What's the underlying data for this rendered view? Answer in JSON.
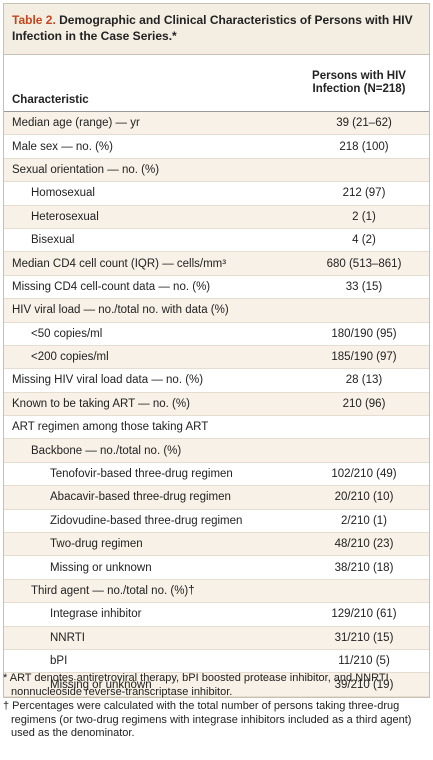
{
  "title": {
    "label": "Table 2.",
    "text": "Demographic and Clinical Characteristics of Persons with HIV Infection in the Case Series.*"
  },
  "table": {
    "header": {
      "characteristic": "Characteristic",
      "value": "Persons with HIV Infection (N=218)"
    },
    "rows": [
      {
        "label": "Median age (range) — yr",
        "value": "39 (21–62)"
      },
      {
        "label": "Male sex — no. (%)",
        "value": "218 (100)"
      },
      {
        "label": "Sexual orientation — no. (%)",
        "rows": [
          {
            "label": "Homosexual",
            "value": "212 (97)"
          },
          {
            "label": "Heterosexual",
            "value": "2 (1)"
          },
          {
            "label": "Bisexual",
            "value": "4 (2)"
          }
        ]
      },
      {
        "label": "Median CD4 cell count (IQR) — cells/mm³",
        "value": "680 (513–861)"
      },
      {
        "label": "Missing CD4 cell-count data — no. (%)",
        "value": "33 (15)"
      },
      {
        "label": "HIV viral load — no./total no. with data (%)",
        "rows": [
          {
            "label": "<50 copies/ml",
            "value": "180/190 (95)"
          },
          {
            "label": "<200 copies/ml",
            "value": "185/190 (97)"
          }
        ]
      },
      {
        "label": "Missing HIV viral load data — no. (%)",
        "value": "28 (13)"
      },
      {
        "label": "Known to be taking ART — no. (%)",
        "value": "210 (96)"
      },
      {
        "label": "ART regimen among those taking ART",
        "rows": [
          {
            "label": "Backbone — no./total no. (%)",
            "rows": [
              {
                "label": "Tenofovir-based three-drug regimen",
                "value": "102/210 (49)"
              },
              {
                "label": "Abacavir-based three-drug regimen",
                "value": "20/210 (10)"
              },
              {
                "label": "Zidovudine-based three-drug regimen",
                "value": "2/210 (1)"
              },
              {
                "label": "Two-drug regimen",
                "value": "48/210 (23)"
              },
              {
                "label": "Missing or unknown",
                "value": "38/210 (18)"
              }
            ]
          },
          {
            "label": "Third agent — no./total no. (%)†",
            "rows": [
              {
                "label": "Integrase inhibitor",
                "value": "129/210 (61)"
              },
              {
                "label": "NNRTI",
                "value": "31/210 (15)"
              },
              {
                "label": "bPI",
                "value": "11/210 (5)"
              },
              {
                "label": "Missing or unknown",
                "value": "39/210 (19)"
              }
            ]
          }
        ]
      }
    ]
  },
  "footnotes": [
    "* ART denotes antiretroviral therapy, bPI boosted protease inhibitor, and NNRTI nonnucleoside reverse-transcriptase inhibitor.",
    "† Percentages were calculated with the total number of persons taking three-drug regimens (or two-drug regimens with integrase inhibitors included as a third agent) used as the denominator."
  ]
}
